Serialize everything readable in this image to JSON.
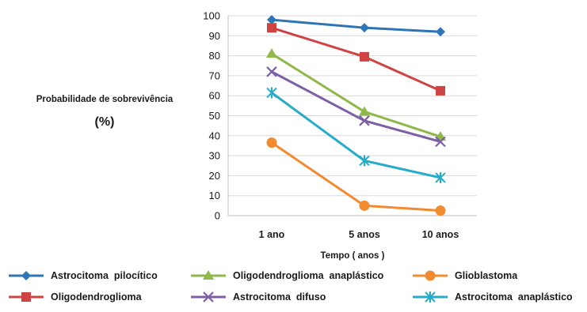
{
  "chart_data": {
    "type": "line",
    "title": "",
    "ylabel": "Probabilidade  de  sobrevivência",
    "yunit": "(%)",
    "xlabel": "Tempo  ( anos )",
    "categories": [
      "1   ano",
      "5  anos",
      "10   anos"
    ],
    "ylim": [
      0,
      100
    ],
    "yticks": [
      "0",
      "10",
      "20",
      "30",
      "40",
      "50",
      "60",
      "70",
      "80",
      "90",
      "100"
    ],
    "grid": true,
    "legend_position": "bottom",
    "series": [
      {
        "name": "Astrocitoma  pilocítico",
        "values": [
          98,
          94,
          92
        ],
        "color": "#2e75b6",
        "marker": "diamond"
      },
      {
        "name": "Oligodendroglioma",
        "values": [
          94,
          79.5,
          62.5
        ],
        "color": "#d04343",
        "marker": "square"
      },
      {
        "name": "Oligodendroglioma  anaplástico",
        "values": [
          81,
          52,
          39.5
        ],
        "color": "#8fb84a",
        "marker": "triangle"
      },
      {
        "name": "Astrocitoma  difuso",
        "values": [
          72,
          47.5,
          37
        ],
        "color": "#7c5fa6",
        "marker": "x"
      },
      {
        "name": "Glioblastoma",
        "values": [
          36.5,
          5,
          2.5
        ],
        "color": "#f28a30",
        "marker": "circle"
      },
      {
        "name": "Astrocitoma  anaplástico",
        "values": [
          61.5,
          27.5,
          19
        ],
        "color": "#26abc9",
        "marker": "star"
      }
    ]
  }
}
